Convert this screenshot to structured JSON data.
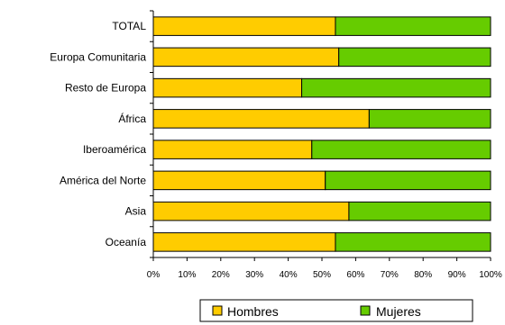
{
  "chart_data": {
    "type": "bar",
    "orientation": "horizontal",
    "stacked": "percent",
    "categories": [
      "TOTAL",
      "Europa Comunitaria",
      "Resto de Europa",
      "África",
      "Iberoamérica",
      "América del Norte",
      "Asia",
      "Oceanía"
    ],
    "series": [
      {
        "name": "Hombres",
        "color": "#FFCC00",
        "values": [
          54,
          55,
          44,
          64,
          47,
          51,
          58,
          54
        ]
      },
      {
        "name": "Mujeres",
        "color": "#66CC00",
        "values": [
          46,
          45,
          56,
          36,
          53,
          49,
          42,
          46
        ]
      }
    ],
    "x_ticks": [
      "0%",
      "10%",
      "20%",
      "30%",
      "40%",
      "50%",
      "60%",
      "70%",
      "80%",
      "90%",
      "100%"
    ],
    "xlim": [
      0,
      100
    ],
    "grid": false,
    "legend_position": "bottom"
  }
}
